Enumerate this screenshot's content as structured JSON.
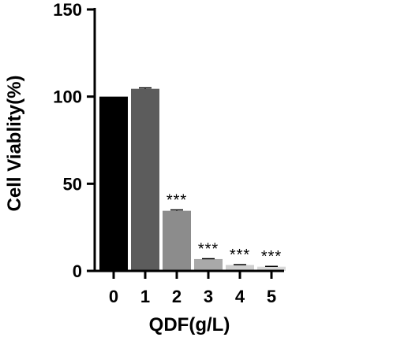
{
  "chart_data": {
    "type": "bar",
    "title": "",
    "xlabel": "QDF(g/L)",
    "ylabel": "Cell Viablity(%)",
    "categories": [
      "0",
      "1",
      "2",
      "3",
      "4",
      "5"
    ],
    "values": [
      100,
      104.5,
      34.5,
      6.8,
      3.4,
      2.4
    ],
    "errors": [
      0,
      0.5,
      0.5,
      0.2,
      0.2,
      0.2
    ],
    "annotations": [
      "",
      "",
      "***",
      "***",
      "***",
      "***"
    ],
    "ylim": [
      0,
      150
    ],
    "yticks": [
      "0",
      "50",
      "100",
      "150"
    ],
    "grid": false,
    "bar_colors": [
      "#000000",
      "#5c5c5c",
      "#8c8c8c",
      "#a9a9a9",
      "#cfcfcf",
      "#d9d9d9"
    ]
  }
}
